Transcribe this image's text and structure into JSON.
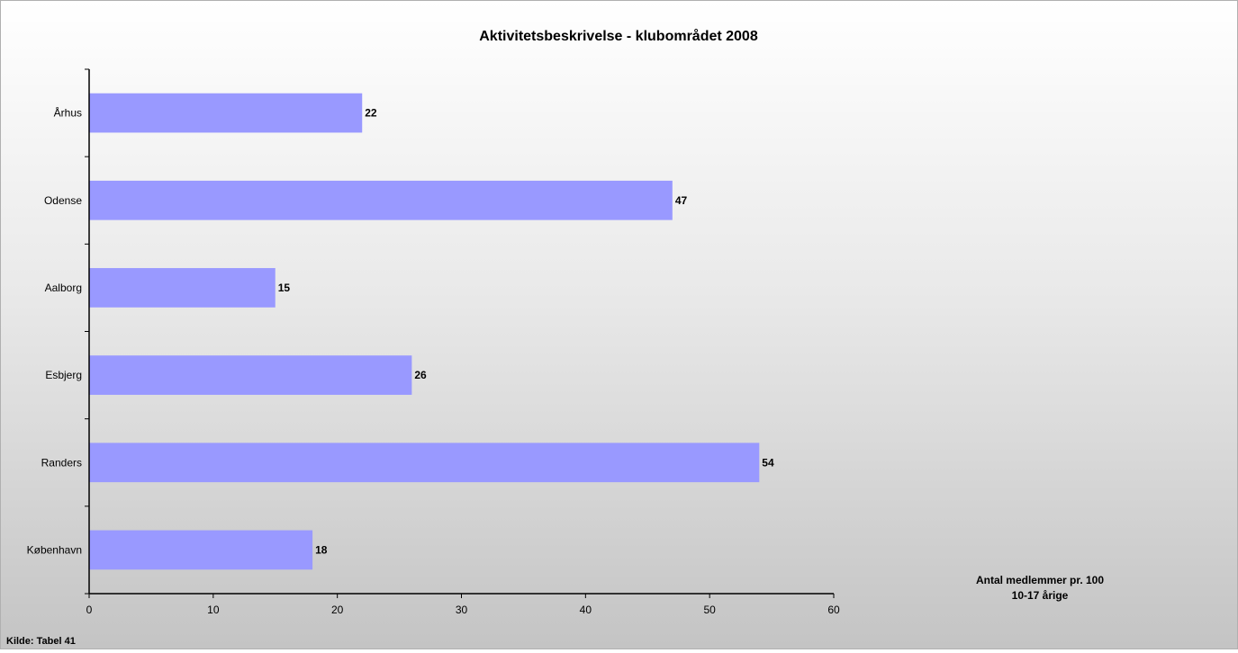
{
  "chart_data": {
    "type": "bar",
    "orientation": "horizontal",
    "title": "Aktivitetsbeskrivelse - klubområdet 2008",
    "categories": [
      "Århus",
      "Odense",
      "Aalborg",
      "Esbjerg",
      "Randers",
      "København"
    ],
    "values": [
      22,
      47,
      15,
      26,
      54,
      18
    ],
    "data_labels": [
      "22",
      "47",
      "15",
      "26",
      "54",
      "18"
    ],
    "xlabel_lines": [
      "Antal medlemmer pr. 100",
      "10-17 årige"
    ],
    "xlim": [
      0,
      60
    ],
    "xticks": [
      "0",
      "10",
      "20",
      "30",
      "40",
      "50",
      "60"
    ],
    "grid": false,
    "bar_color": "#9999ff",
    "source_note": "Kilde: Tabel 41"
  }
}
